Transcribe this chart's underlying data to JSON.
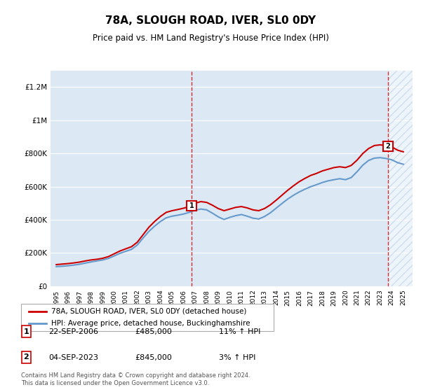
{
  "title": "78A, SLOUGH ROAD, IVER, SL0 0DY",
  "subtitle": "Price paid vs. HM Land Registry's House Price Index (HPI)",
  "legend_label_red": "78A, SLOUGH ROAD, IVER, SL0 0DY (detached house)",
  "legend_label_blue": "HPI: Average price, detached house, Buckinghamshire",
  "annotation1_label": "1",
  "annotation1_date": "22-SEP-2006",
  "annotation1_price": "£485,000",
  "annotation1_hpi": "11% ↑ HPI",
  "annotation1_year": 2006.72,
  "annotation1_value": 485000,
  "annotation2_label": "2",
  "annotation2_date": "04-SEP-2023",
  "annotation2_price": "£845,000",
  "annotation2_hpi": "3% ↑ HPI",
  "annotation2_year": 2023.67,
  "annotation2_value": 845000,
  "footer": "Contains HM Land Registry data © Crown copyright and database right 2024.\nThis data is licensed under the Open Government Licence v3.0.",
  "ylim": [
    0,
    1300000
  ],
  "yticks": [
    0,
    200000,
    400000,
    600000,
    800000,
    1000000,
    1200000
  ],
  "ytick_labels": [
    "£0",
    "£200K",
    "£400K",
    "£600K",
    "£800K",
    "£1M",
    "£1.2M"
  ],
  "bg_color": "#dce9f5",
  "hatch_color": "#b0c8e0",
  "red_color": "#cc0000",
  "blue_color": "#6699cc",
  "years_red": [
    1995.0,
    1995.5,
    1996.0,
    1996.5,
    1997.0,
    1997.5,
    1998.0,
    1998.5,
    1999.0,
    1999.5,
    2000.0,
    2000.5,
    2001.0,
    2001.5,
    2002.0,
    2002.5,
    2003.0,
    2003.5,
    2004.0,
    2004.5,
    2005.0,
    2005.5,
    2006.0,
    2006.5,
    2006.72,
    2007.0,
    2007.5,
    2008.0,
    2008.5,
    2009.0,
    2009.5,
    2010.0,
    2010.5,
    2011.0,
    2011.5,
    2012.0,
    2012.5,
    2013.0,
    2013.5,
    2014.0,
    2014.5,
    2015.0,
    2015.5,
    2016.0,
    2016.5,
    2017.0,
    2017.5,
    2018.0,
    2018.5,
    2019.0,
    2019.5,
    2020.0,
    2020.5,
    2021.0,
    2021.5,
    2022.0,
    2022.5,
    2023.0,
    2023.5,
    2023.67,
    2024.0,
    2024.5,
    2025.0
  ],
  "values_red": [
    130000,
    133000,
    136000,
    140000,
    145000,
    152000,
    158000,
    162000,
    168000,
    178000,
    195000,
    212000,
    225000,
    238000,
    265000,
    310000,
    355000,
    390000,
    420000,
    445000,
    455000,
    462000,
    470000,
    480000,
    485000,
    500000,
    510000,
    505000,
    488000,
    468000,
    455000,
    465000,
    475000,
    480000,
    472000,
    460000,
    455000,
    468000,
    490000,
    518000,
    548000,
    578000,
    605000,
    630000,
    650000,
    668000,
    680000,
    695000,
    705000,
    715000,
    720000,
    715000,
    728000,
    760000,
    800000,
    830000,
    848000,
    852000,
    848000,
    845000,
    840000,
    820000,
    810000
  ],
  "years_blue": [
    1995.0,
    1995.5,
    1996.0,
    1996.5,
    1997.0,
    1997.5,
    1998.0,
    1998.5,
    1999.0,
    1999.5,
    2000.0,
    2000.5,
    2001.0,
    2001.5,
    2002.0,
    2002.5,
    2003.0,
    2003.5,
    2004.0,
    2004.5,
    2005.0,
    2005.5,
    2006.0,
    2006.5,
    2007.0,
    2007.5,
    2008.0,
    2008.5,
    2009.0,
    2009.5,
    2010.0,
    2010.5,
    2011.0,
    2011.5,
    2012.0,
    2012.5,
    2013.0,
    2013.5,
    2014.0,
    2014.5,
    2015.0,
    2015.5,
    2016.0,
    2016.5,
    2017.0,
    2017.5,
    2018.0,
    2018.5,
    2019.0,
    2019.5,
    2020.0,
    2020.5,
    2021.0,
    2021.5,
    2022.0,
    2022.5,
    2023.0,
    2023.5,
    2024.0,
    2024.5,
    2025.0
  ],
  "values_blue": [
    118000,
    120000,
    123000,
    127000,
    132000,
    139000,
    146000,
    152000,
    158000,
    167000,
    182000,
    198000,
    210000,
    222000,
    248000,
    290000,
    330000,
    362000,
    390000,
    412000,
    422000,
    428000,
    435000,
    445000,
    458000,
    465000,
    460000,
    440000,
    418000,
    402000,
    415000,
    425000,
    432000,
    422000,
    410000,
    405000,
    420000,
    442000,
    470000,
    498000,
    525000,
    548000,
    568000,
    585000,
    600000,
    612000,
    625000,
    635000,
    642000,
    648000,
    642000,
    655000,
    690000,
    730000,
    758000,
    772000,
    775000,
    770000,
    762000,
    745000,
    735000
  ],
  "xlim_left": 1994.5,
  "xlim_right": 2025.8,
  "hatch_start": 2023.67,
  "hatch_end": 2025.8,
  "xtick_years": [
    1995,
    1996,
    1997,
    1998,
    1999,
    2000,
    2001,
    2002,
    2003,
    2004,
    2005,
    2006,
    2007,
    2008,
    2009,
    2010,
    2011,
    2012,
    2013,
    2014,
    2015,
    2016,
    2017,
    2018,
    2019,
    2020,
    2021,
    2022,
    2023,
    2024,
    2025
  ]
}
